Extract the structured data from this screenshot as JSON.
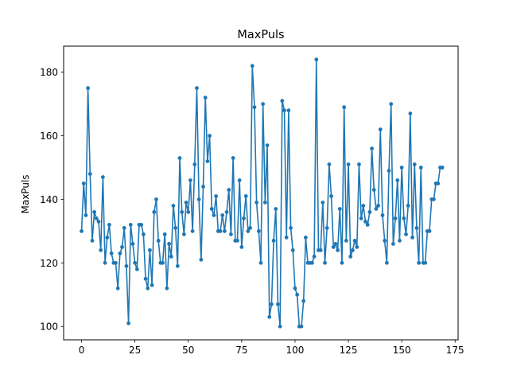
{
  "chart_data": {
    "type": "line",
    "title": "MaxPuls",
    "xlabel": "",
    "ylabel": "MaxPuls",
    "xlim": [
      -8.4,
      176.4
    ],
    "ylim": [
      95.8,
      188.2
    ],
    "xticks": [
      0,
      25,
      50,
      75,
      100,
      125,
      150,
      175
    ],
    "yticks": [
      100,
      120,
      140,
      160,
      180
    ],
    "grid": false,
    "marker": "circle",
    "color": "#1f77b4",
    "series": [
      {
        "values": [
          130,
          145,
          135,
          175,
          148,
          127,
          136,
          134,
          133,
          124,
          147,
          120,
          128,
          132,
          123,
          120,
          120,
          112,
          123,
          125,
          131,
          119,
          101,
          132,
          126,
          120,
          118,
          132,
          132,
          129,
          115,
          112,
          124,
          113,
          136,
          140,
          127,
          120,
          120,
          129,
          112,
          126,
          122,
          138,
          131,
          119,
          153,
          136,
          129,
          139,
          136,
          146,
          130,
          151,
          175,
          140,
          121,
          144,
          172,
          152,
          160,
          137,
          135,
          141,
          130,
          130,
          135,
          130,
          136,
          143,
          129,
          153,
          127,
          127,
          146,
          125,
          134,
          141,
          130,
          131,
          182,
          169,
          139,
          130,
          120,
          170,
          139,
          157,
          103,
          107,
          127,
          137,
          107,
          100,
          171,
          168,
          128,
          168,
          131,
          124,
          112,
          110,
          100,
          100,
          108,
          128,
          120,
          120,
          120,
          122,
          184,
          124,
          124,
          139,
          120,
          131,
          151,
          141,
          125,
          126,
          124,
          137,
          120,
          169,
          127,
          151,
          122,
          124,
          127,
          125,
          151,
          134,
          138,
          133,
          132,
          136,
          156,
          143,
          137,
          138,
          162,
          135,
          127,
          120,
          149,
          170,
          126,
          134,
          146,
          127,
          150,
          134,
          129,
          138,
          167,
          128,
          151,
          131,
          120,
          150,
          120,
          120,
          130,
          130,
          140,
          140,
          145,
          145,
          150,
          150
        ]
      }
    ]
  }
}
